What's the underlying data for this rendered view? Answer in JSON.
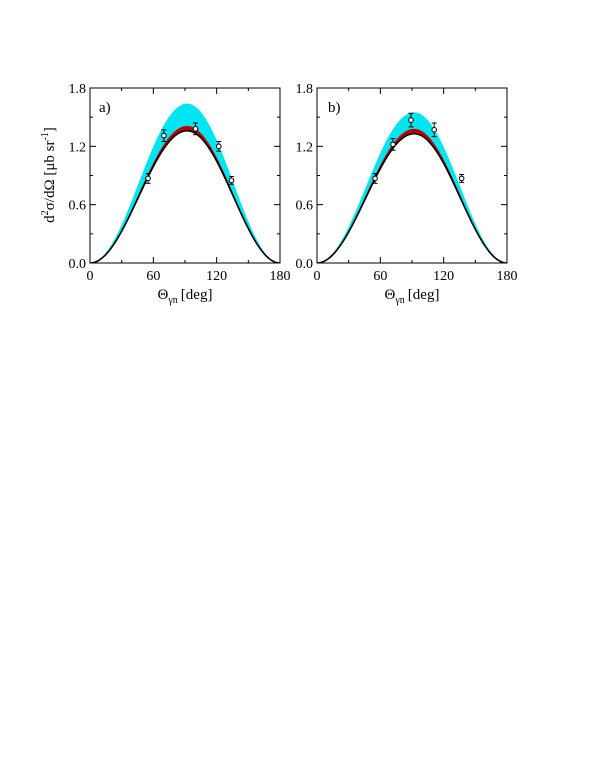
{
  "chart_data": [
    {
      "type": "line",
      "panel_label": "a)",
      "xlabel": "Θγn [deg]",
      "xlabel_main": "Θ",
      "xlabel_sub": "γn",
      "xlabel_unit": "[deg]",
      "ylabel": "d²σ/dΩ [μb sr⁻¹]",
      "ylabel_parts": {
        "d1": "d",
        "sup1": "2",
        "mid": "σ/dΩ [μb sr",
        "sup2": "-1",
        "end": "]"
      },
      "xlim": [
        0,
        180
      ],
      "ylim": [
        0,
        1.8
      ],
      "xticks": [
        0,
        60,
        120,
        180
      ],
      "xtick_labels": [
        "0",
        "60",
        "120",
        "180"
      ],
      "yticks": [
        0.0,
        0.6,
        1.2,
        1.8
      ],
      "ytick_labels": [
        "0.0",
        "0.6",
        "1.2",
        "1.8"
      ],
      "grid": false,
      "curves": {
        "peak_angle": 92,
        "black_peak": 1.36,
        "red_band": [
          1.36,
          1.41
        ],
        "cyan_band": [
          1.36,
          1.64
        ]
      },
      "points": [
        {
          "x": 55,
          "y": 0.87,
          "err": 0.05
        },
        {
          "x": 70,
          "y": 1.31,
          "err": 0.06
        },
        {
          "x": 100,
          "y": 1.38,
          "err": 0.06
        },
        {
          "x": 122,
          "y": 1.2,
          "err": 0.05
        },
        {
          "x": 134,
          "y": 0.85,
          "err": 0.04
        }
      ],
      "colors": {
        "band_cyan": "#00e6f0",
        "band_red": "#c00000",
        "line": "#000000"
      }
    },
    {
      "type": "line",
      "panel_label": "b)",
      "xlabel": "Θγn [deg]",
      "xlabel_main": "Θ",
      "xlabel_sub": "γn",
      "xlabel_unit": "[deg]",
      "xlim": [
        0,
        180
      ],
      "ylim": [
        0,
        1.8
      ],
      "xticks": [
        0,
        60,
        120,
        180
      ],
      "xtick_labels": [
        "0",
        "60",
        "120",
        "180"
      ],
      "yticks": [
        0.0,
        0.6,
        1.2,
        1.8
      ],
      "ytick_labels": [
        "0.0",
        "0.6",
        "1.2",
        "1.8"
      ],
      "grid": false,
      "curves": {
        "peak_angle": 92,
        "black_peak": 1.33,
        "red_band": [
          1.33,
          1.38
        ],
        "cyan_band": [
          1.33,
          1.55
        ]
      },
      "points": [
        {
          "x": 55,
          "y": 0.87,
          "err": 0.05
        },
        {
          "x": 72,
          "y": 1.22,
          "err": 0.06
        },
        {
          "x": 89,
          "y": 1.47,
          "err": 0.07
        },
        {
          "x": 111,
          "y": 1.37,
          "err": 0.07
        },
        {
          "x": 137,
          "y": 0.87,
          "err": 0.04
        }
      ],
      "colors": {
        "band_cyan": "#00e6f0",
        "band_red": "#c00000",
        "line": "#000000"
      }
    }
  ]
}
